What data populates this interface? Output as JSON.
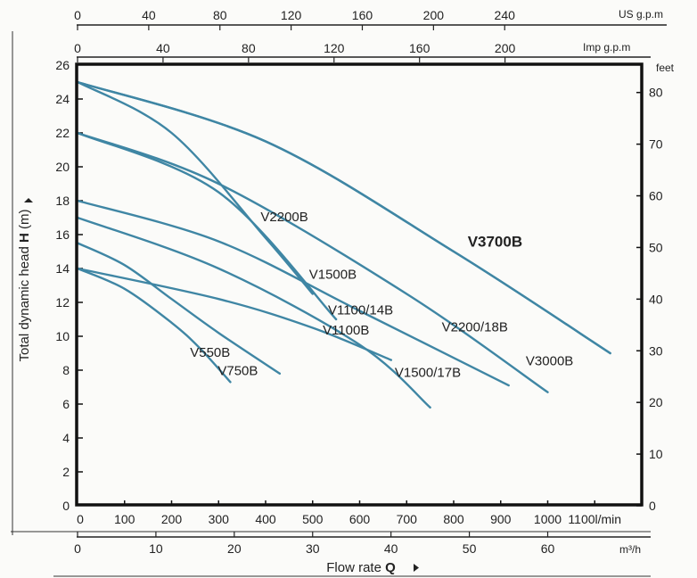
{
  "chart_data": {
    "type": "line",
    "colors": {
      "curve": "#3f86a4",
      "frame": "#111111",
      "text": "#222222"
    },
    "axes": {
      "left": {
        "title_parts": [
          "Total dynamic head ",
          "H",
          " (m)"
        ],
        "range": [
          0,
          26
        ],
        "ticks": [
          "0",
          "2",
          "4",
          "6",
          "8",
          "10",
          "12",
          "14",
          "16",
          "18",
          "20",
          "22",
          "24",
          "26"
        ]
      },
      "right": {
        "unit": "feet",
        "ticks": [
          "0",
          "10",
          "20",
          "30",
          "40",
          "50",
          "60",
          "70",
          "80"
        ]
      },
      "bottom_lmin": {
        "unit": "l/min",
        "range": [
          0,
          1200
        ],
        "ticks": [
          "0",
          "100",
          "200",
          "300",
          "400",
          "500",
          "600",
          "700",
          "800",
          "900",
          "1000",
          "1100"
        ]
      },
      "bottom_m3h": {
        "unit": "m³/h",
        "ticks": [
          "0",
          "10",
          "20",
          "30",
          "40",
          "50",
          "60"
        ]
      },
      "flow_title_parts": [
        "Flow rate ",
        "Q"
      ],
      "top_us": {
        "unit": "US g.p.m",
        "ticks": [
          "0",
          "40",
          "80",
          "120",
          "160",
          "200",
          "240"
        ]
      },
      "top_imp": {
        "unit": "Imp g.p.m",
        "ticks": [
          "0",
          "40",
          "80",
          "120",
          "160",
          "200"
        ]
      }
    },
    "series": [
      {
        "name": "V550B",
        "x": [
          0,
          100,
          200,
          260,
          325
        ],
        "y": [
          14,
          12.8,
          10.8,
          9.3,
          7.3
        ]
      },
      {
        "name": "V750B",
        "x": [
          0,
          100,
          200,
          300,
          430
        ],
        "y": [
          15.5,
          14.2,
          12.2,
          10.2,
          7.8
        ]
      },
      {
        "name": "V1100B",
        "x": [
          0,
          300,
          500,
          667
        ],
        "y": [
          14,
          12.2,
          10.5,
          8.6
        ]
      },
      {
        "name": "V1100/14B",
        "x": [
          0,
          300,
          600,
          750
        ],
        "y": [
          17,
          14,
          9.5,
          5.8
        ]
      },
      {
        "name": "V1500B",
        "x": [
          0,
          200,
          400,
          500
        ],
        "y": [
          25,
          22,
          15.8,
          12.5
        ]
      },
      {
        "name": "V1500/17B",
        "x": [
          0,
          300,
          600,
          917
        ],
        "y": [
          18,
          15.6,
          11.5,
          7.1
        ]
      },
      {
        "name": "V2200B",
        "x": [
          0,
          300,
          550
        ],
        "y": [
          22,
          18.5,
          11
        ]
      },
      {
        "name": "V2200/18B",
        "x": [
          0,
          300,
          700,
          1000
        ],
        "y": [
          22,
          19,
          12.5,
          6.7
        ]
      },
      {
        "name": "V3000B",
        "x": [
          0,
          400,
          800,
          1133
        ],
        "y": [
          25,
          21.5,
          15,
          9
        ]
      },
      {
        "name": "V3700B",
        "x": [
          0,
          400,
          800,
          1133
        ],
        "y": [
          25,
          21.5,
          15,
          9
        ]
      }
    ],
    "labels": [
      {
        "text": "V550B",
        "x": 282,
        "y": 8.8
      },
      {
        "text": "V750B",
        "x": 341,
        "y": 7.7
      },
      {
        "text": "V1100B",
        "x": 571,
        "y": 10.1
      },
      {
        "text": "V1100/14B",
        "x": 602,
        "y": 11.3
      },
      {
        "text": "V1500B",
        "x": 543,
        "y": 13.4
      },
      {
        "text": "V1500/17B",
        "x": 745,
        "y": 7.6
      },
      {
        "text": "V2200B",
        "x": 440,
        "y": 16.8
      },
      {
        "text": "V2200/18B",
        "x": 845,
        "y": 10.3
      },
      {
        "text": "V3000B",
        "x": 1004,
        "y": 8.3
      },
      {
        "text": "V3700B",
        "x": 888,
        "y": 15.3,
        "bold": true
      }
    ]
  }
}
